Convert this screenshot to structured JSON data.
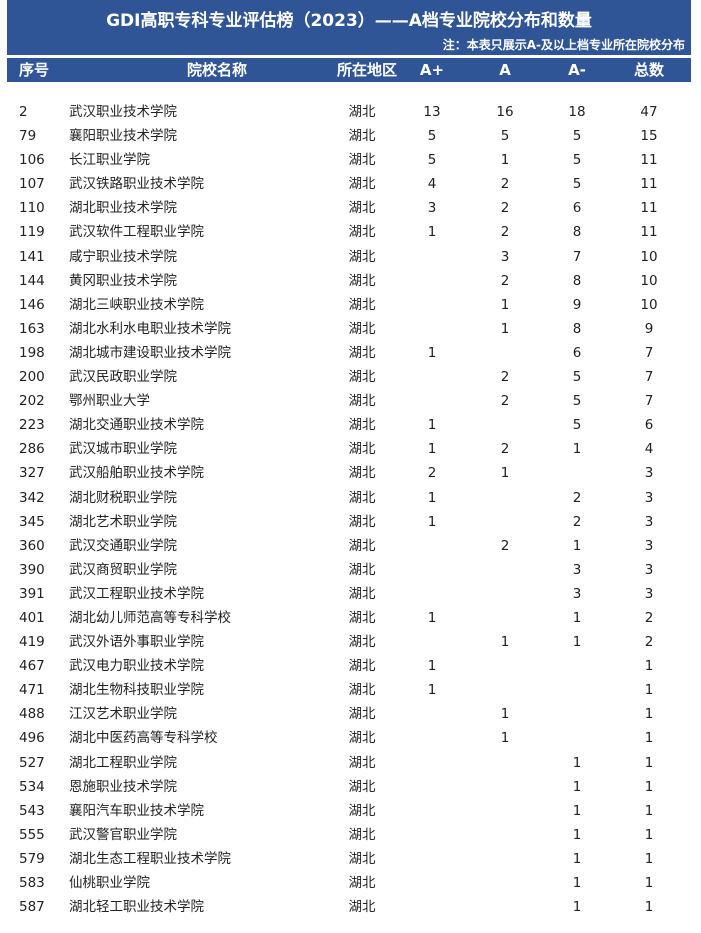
{
  "title": "GDI高职专科专业评估榜（2023）——A档专业院校分布和数量",
  "note": "注：本表只展示A-及以上档专业所在院校分布",
  "colors": {
    "header_bg": "#2F5597",
    "header_text": "#FFFFFF"
  },
  "columns": [
    "序号",
    "院校名称",
    "所在地区",
    "A+",
    "A",
    "A-",
    "总数"
  ],
  "rows": [
    [
      "2",
      "武汉职业技术学院",
      "湖北",
      "13",
      "16",
      "18",
      "47"
    ],
    [
      "79",
      "襄阳职业技术学院",
      "湖北",
      "5",
      "5",
      "5",
      "15"
    ],
    [
      "106",
      "长江职业学院",
      "湖北",
      "5",
      "1",
      "5",
      "11"
    ],
    [
      "107",
      "武汉铁路职业技术学院",
      "湖北",
      "4",
      "2",
      "5",
      "11"
    ],
    [
      "110",
      "湖北职业技术学院",
      "湖北",
      "3",
      "2",
      "6",
      "11"
    ],
    [
      "119",
      "武汉软件工程职业学院",
      "湖北",
      "1",
      "2",
      "8",
      "11"
    ],
    [
      "141",
      "咸宁职业技术学院",
      "湖北",
      "",
      "3",
      "7",
      "10"
    ],
    [
      "144",
      "黄冈职业技术学院",
      "湖北",
      "",
      "2",
      "8",
      "10"
    ],
    [
      "146",
      "湖北三峡职业技术学院",
      "湖北",
      "",
      "1",
      "9",
      "10"
    ],
    [
      "163",
      "湖北水利水电职业技术学院",
      "湖北",
      "",
      "1",
      "8",
      "9"
    ],
    [
      "198",
      "湖北城市建设职业技术学院",
      "湖北",
      "1",
      "",
      "6",
      "7"
    ],
    [
      "200",
      "武汉民政职业学院",
      "湖北",
      "",
      "2",
      "5",
      "7"
    ],
    [
      "202",
      "鄂州职业大学",
      "湖北",
      "",
      "2",
      "5",
      "7"
    ],
    [
      "223",
      "湖北交通职业技术学院",
      "湖北",
      "1",
      "",
      "5",
      "6"
    ],
    [
      "286",
      "武汉城市职业学院",
      "湖北",
      "1",
      "2",
      "1",
      "4"
    ],
    [
      "327",
      "武汉船舶职业技术学院",
      "湖北",
      "2",
      "1",
      "",
      "3"
    ],
    [
      "342",
      "湖北财税职业学院",
      "湖北",
      "1",
      "",
      "2",
      "3"
    ],
    [
      "345",
      "湖北艺术职业学院",
      "湖北",
      "1",
      "",
      "2",
      "3"
    ],
    [
      "360",
      "武汉交通职业学院",
      "湖北",
      "",
      "2",
      "1",
      "3"
    ],
    [
      "390",
      "武汉商贸职业学院",
      "湖北",
      "",
      "",
      "3",
      "3"
    ],
    [
      "391",
      "武汉工程职业技术学院",
      "湖北",
      "",
      "",
      "3",
      "3"
    ],
    [
      "401",
      "湖北幼儿师范高等专科学校",
      "湖北",
      "1",
      "",
      "1",
      "2"
    ],
    [
      "419",
      "武汉外语外事职业学院",
      "湖北",
      "",
      "1",
      "1",
      "2"
    ],
    [
      "467",
      "武汉电力职业技术学院",
      "湖北",
      "1",
      "",
      "",
      "1"
    ],
    [
      "471",
      "湖北生物科技职业学院",
      "湖北",
      "1",
      "",
      "",
      "1"
    ],
    [
      "488",
      "江汉艺术职业学院",
      "湖北",
      "",
      "1",
      "",
      "1"
    ],
    [
      "496",
      "湖北中医药高等专科学校",
      "湖北",
      "",
      "1",
      "",
      "1"
    ],
    [
      "527",
      "湖北工程职业学院",
      "湖北",
      "",
      "",
      "1",
      "1"
    ],
    [
      "534",
      "恩施职业技术学院",
      "湖北",
      "",
      "",
      "1",
      "1"
    ],
    [
      "543",
      "襄阳汽车职业技术学院",
      "湖北",
      "",
      "",
      "1",
      "1"
    ],
    [
      "555",
      "武汉警官职业学院",
      "湖北",
      "",
      "",
      "1",
      "1"
    ],
    [
      "579",
      "湖北生态工程职业技术学院",
      "湖北",
      "",
      "",
      "1",
      "1"
    ],
    [
      "583",
      "仙桃职业学院",
      "湖北",
      "",
      "",
      "1",
      "1"
    ],
    [
      "587",
      "湖北轻工职业技术学院",
      "湖北",
      "",
      "",
      "1",
      "1"
    ]
  ]
}
